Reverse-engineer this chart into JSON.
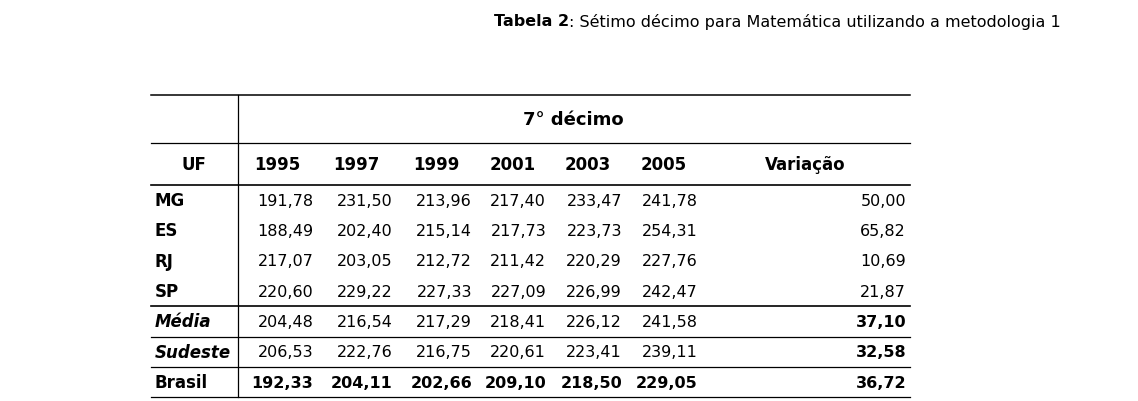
{
  "title_bold": "Tabela 2",
  "title_normal": ": Sétimo décimo para Matemática utilizando a metodologia 1",
  "subheader": "7° décimo",
  "columns": [
    "UF",
    "1995",
    "1997",
    "1999",
    "2001",
    "2003",
    "2005",
    "Variação"
  ],
  "rows": [
    [
      "MG",
      "191,78",
      "231,50",
      "213,96",
      "217,40",
      "233,47",
      "241,78",
      "50,00"
    ],
    [
      "ES",
      "188,49",
      "202,40",
      "215,14",
      "217,73",
      "223,73",
      "254,31",
      "65,82"
    ],
    [
      "RJ",
      "217,07",
      "203,05",
      "212,72",
      "211,42",
      "220,29",
      "227,76",
      "10,69"
    ],
    [
      "SP",
      "220,60",
      "229,22",
      "227,33",
      "227,09",
      "226,99",
      "242,47",
      "21,87"
    ]
  ],
  "summary_rows": [
    [
      "Média",
      "204,48",
      "216,54",
      "217,29",
      "218,41",
      "226,12",
      "241,58",
      "37,10"
    ],
    [
      "Sudeste",
      "206,53",
      "222,76",
      "216,75",
      "220,61",
      "223,41",
      "239,11",
      "32,58"
    ],
    [
      "Brasil",
      "192,33",
      "204,11",
      "202,66",
      "209,10",
      "218,50",
      "229,05",
      "36,72"
    ]
  ],
  "bg_color": "#ffffff",
  "title_fontsize": 11.5,
  "header_fontsize": 12,
  "cell_fontsize": 11.5,
  "subheader_fontsize": 13
}
